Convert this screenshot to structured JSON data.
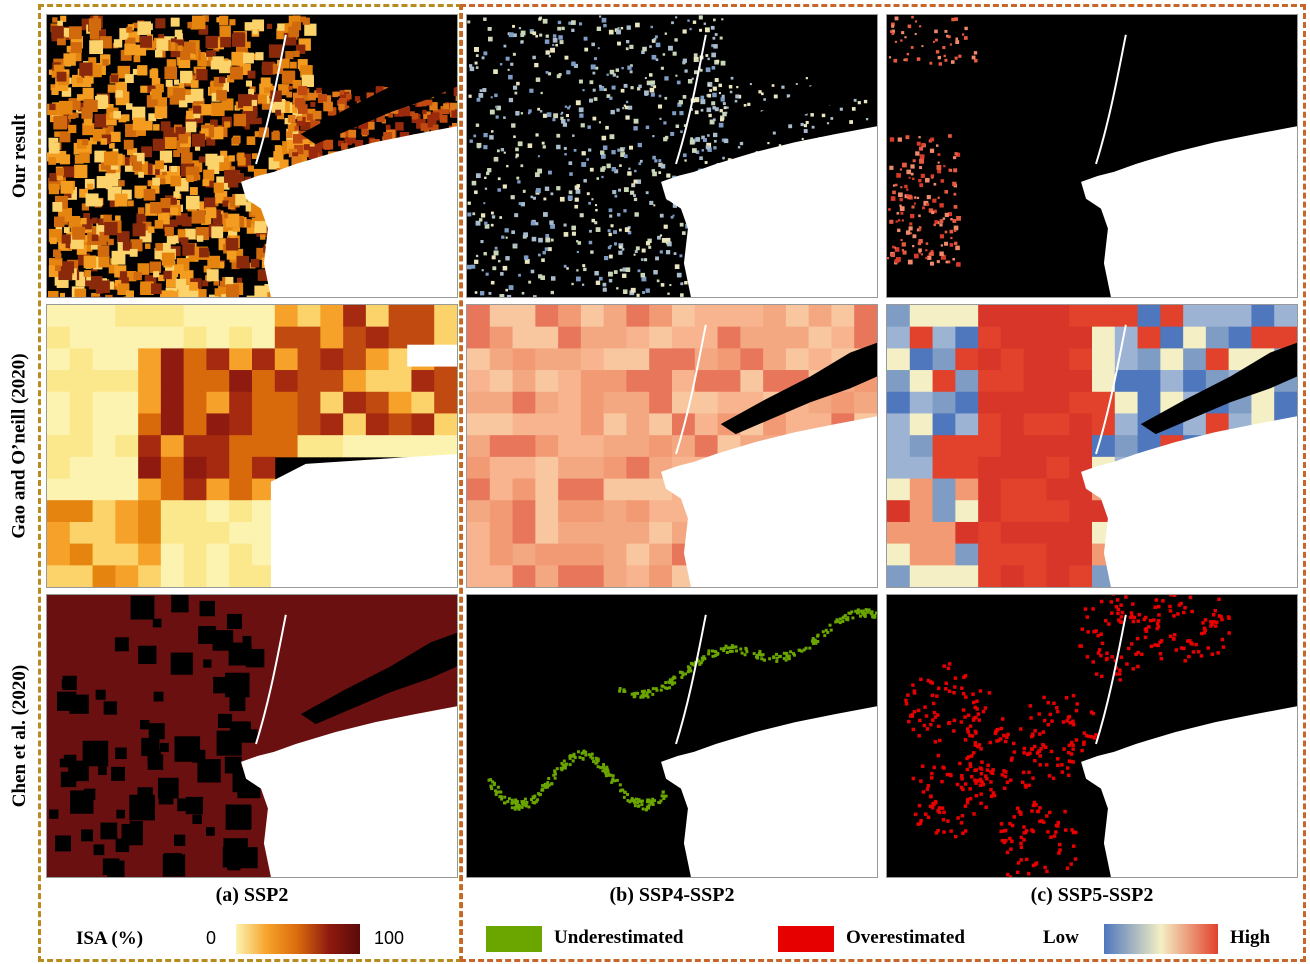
{
  "rows": [
    "Our result",
    "Gao and O’neill (2020)",
    "Chen et al. (2020)"
  ],
  "columns": [
    "(a) SSP2",
    "(b) SSP4-SSP2",
    "(c) SSP5-SSP2"
  ],
  "legend_a": {
    "title": "ISA (%)",
    "min": "0",
    "max": "100"
  },
  "legend_b": {
    "under": "Underestimated",
    "over": "Overestimated"
  },
  "legend_c": {
    "low": "Low",
    "high": "High"
  },
  "colors": {
    "under": "#6aa500",
    "over": "#e60000",
    "isa_ramp": [
      "#fdf3b0",
      "#f6a22a",
      "#d96a0c",
      "#8f1a0f",
      "#5b0a0a"
    ],
    "diff_ramp": [
      "#4f77bd",
      "#f4efc4",
      "#e2412c"
    ],
    "frame_a": "#b98a1e",
    "frame_bc": "#c8662a"
  }
}
